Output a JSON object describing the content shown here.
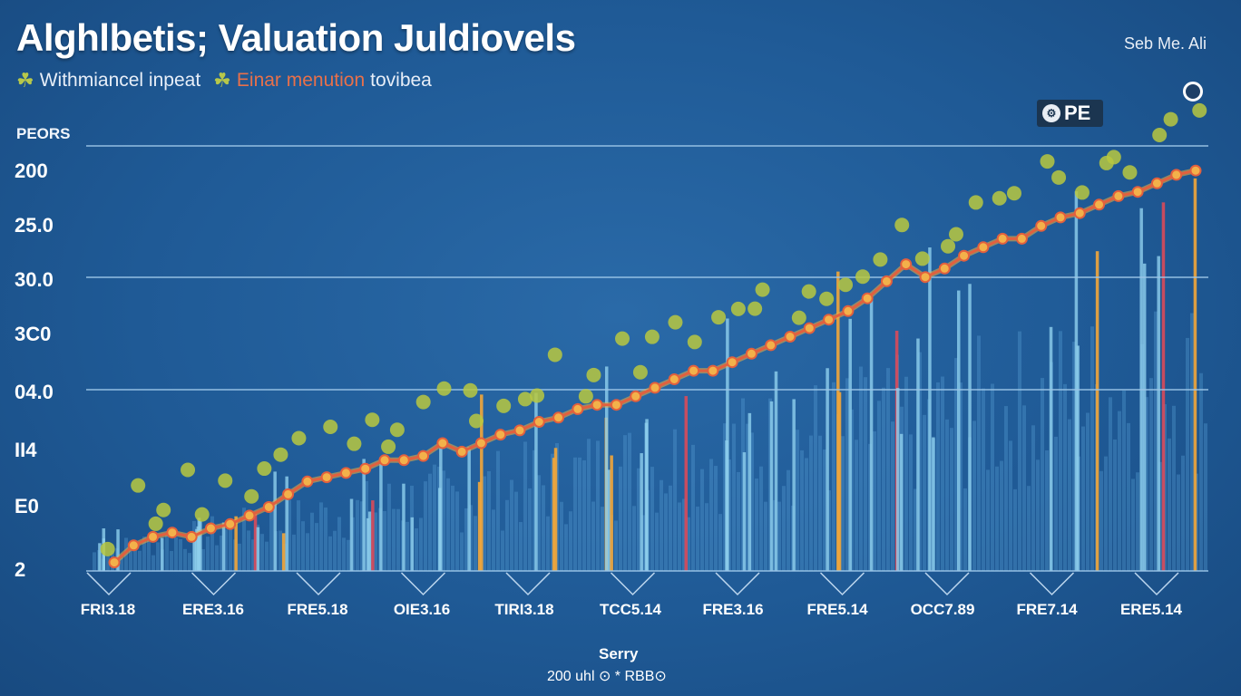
{
  "header": {
    "title": "Alghlbetis; Valuation Juldiovels",
    "top_right": "Seb Me. Ali",
    "legend": [
      {
        "icon": "leaf-icon",
        "label": "Withmiancel inpeat"
      },
      {
        "icon": "leaf-icon",
        "label_a": "Einar menution",
        "label_b": "tovibea"
      }
    ],
    "badge_label": "PE"
  },
  "footer": {
    "label": "Serry",
    "note": "200 uhl ⊙ * RBB⊙"
  },
  "chart_data": {
    "type": "line",
    "title": "Alghlbetis; Valuation Juldiovels",
    "ylabel": "PEORS",
    "xlabel": "Serry",
    "y_tick_labels": [
      "200",
      "25.0",
      "30.0",
      "3C0",
      "04.0",
      "II4",
      "E0",
      "2"
    ],
    "x_tick_labels": [
      "FRI3.18",
      "ERE3.16",
      "FRE5.18",
      "OIE3.16",
      "TIRI3.18",
      "TCC5.14",
      "FRE3.16",
      "FRE5.14",
      "OCC7.89",
      "FRE7.14",
      "ERE5.14"
    ],
    "ylim": [
      0,
      100
    ],
    "grid": true,
    "colors": {
      "line": "#e2603e",
      "bars_light": "#8fd0ee",
      "bars_orange": "#f2a63a",
      "bars_red": "#d94a5a",
      "dots": "#b8c840"
    },
    "series": [
      {
        "name": "Einar menution",
        "values": [
          2,
          6,
          8,
          9,
          8,
          10,
          11,
          13,
          15,
          18,
          21,
          22,
          23,
          24,
          26,
          26,
          27,
          30,
          28,
          30,
          32,
          33,
          35,
          36,
          38,
          39,
          39,
          41,
          43,
          45,
          47,
          47,
          49,
          51,
          53,
          55,
          57,
          59,
          61,
          64,
          68,
          72,
          69,
          71,
          74,
          76,
          78,
          78,
          81,
          83,
          84,
          86,
          88,
          89,
          91,
          93,
          94
        ]
      }
    ]
  }
}
